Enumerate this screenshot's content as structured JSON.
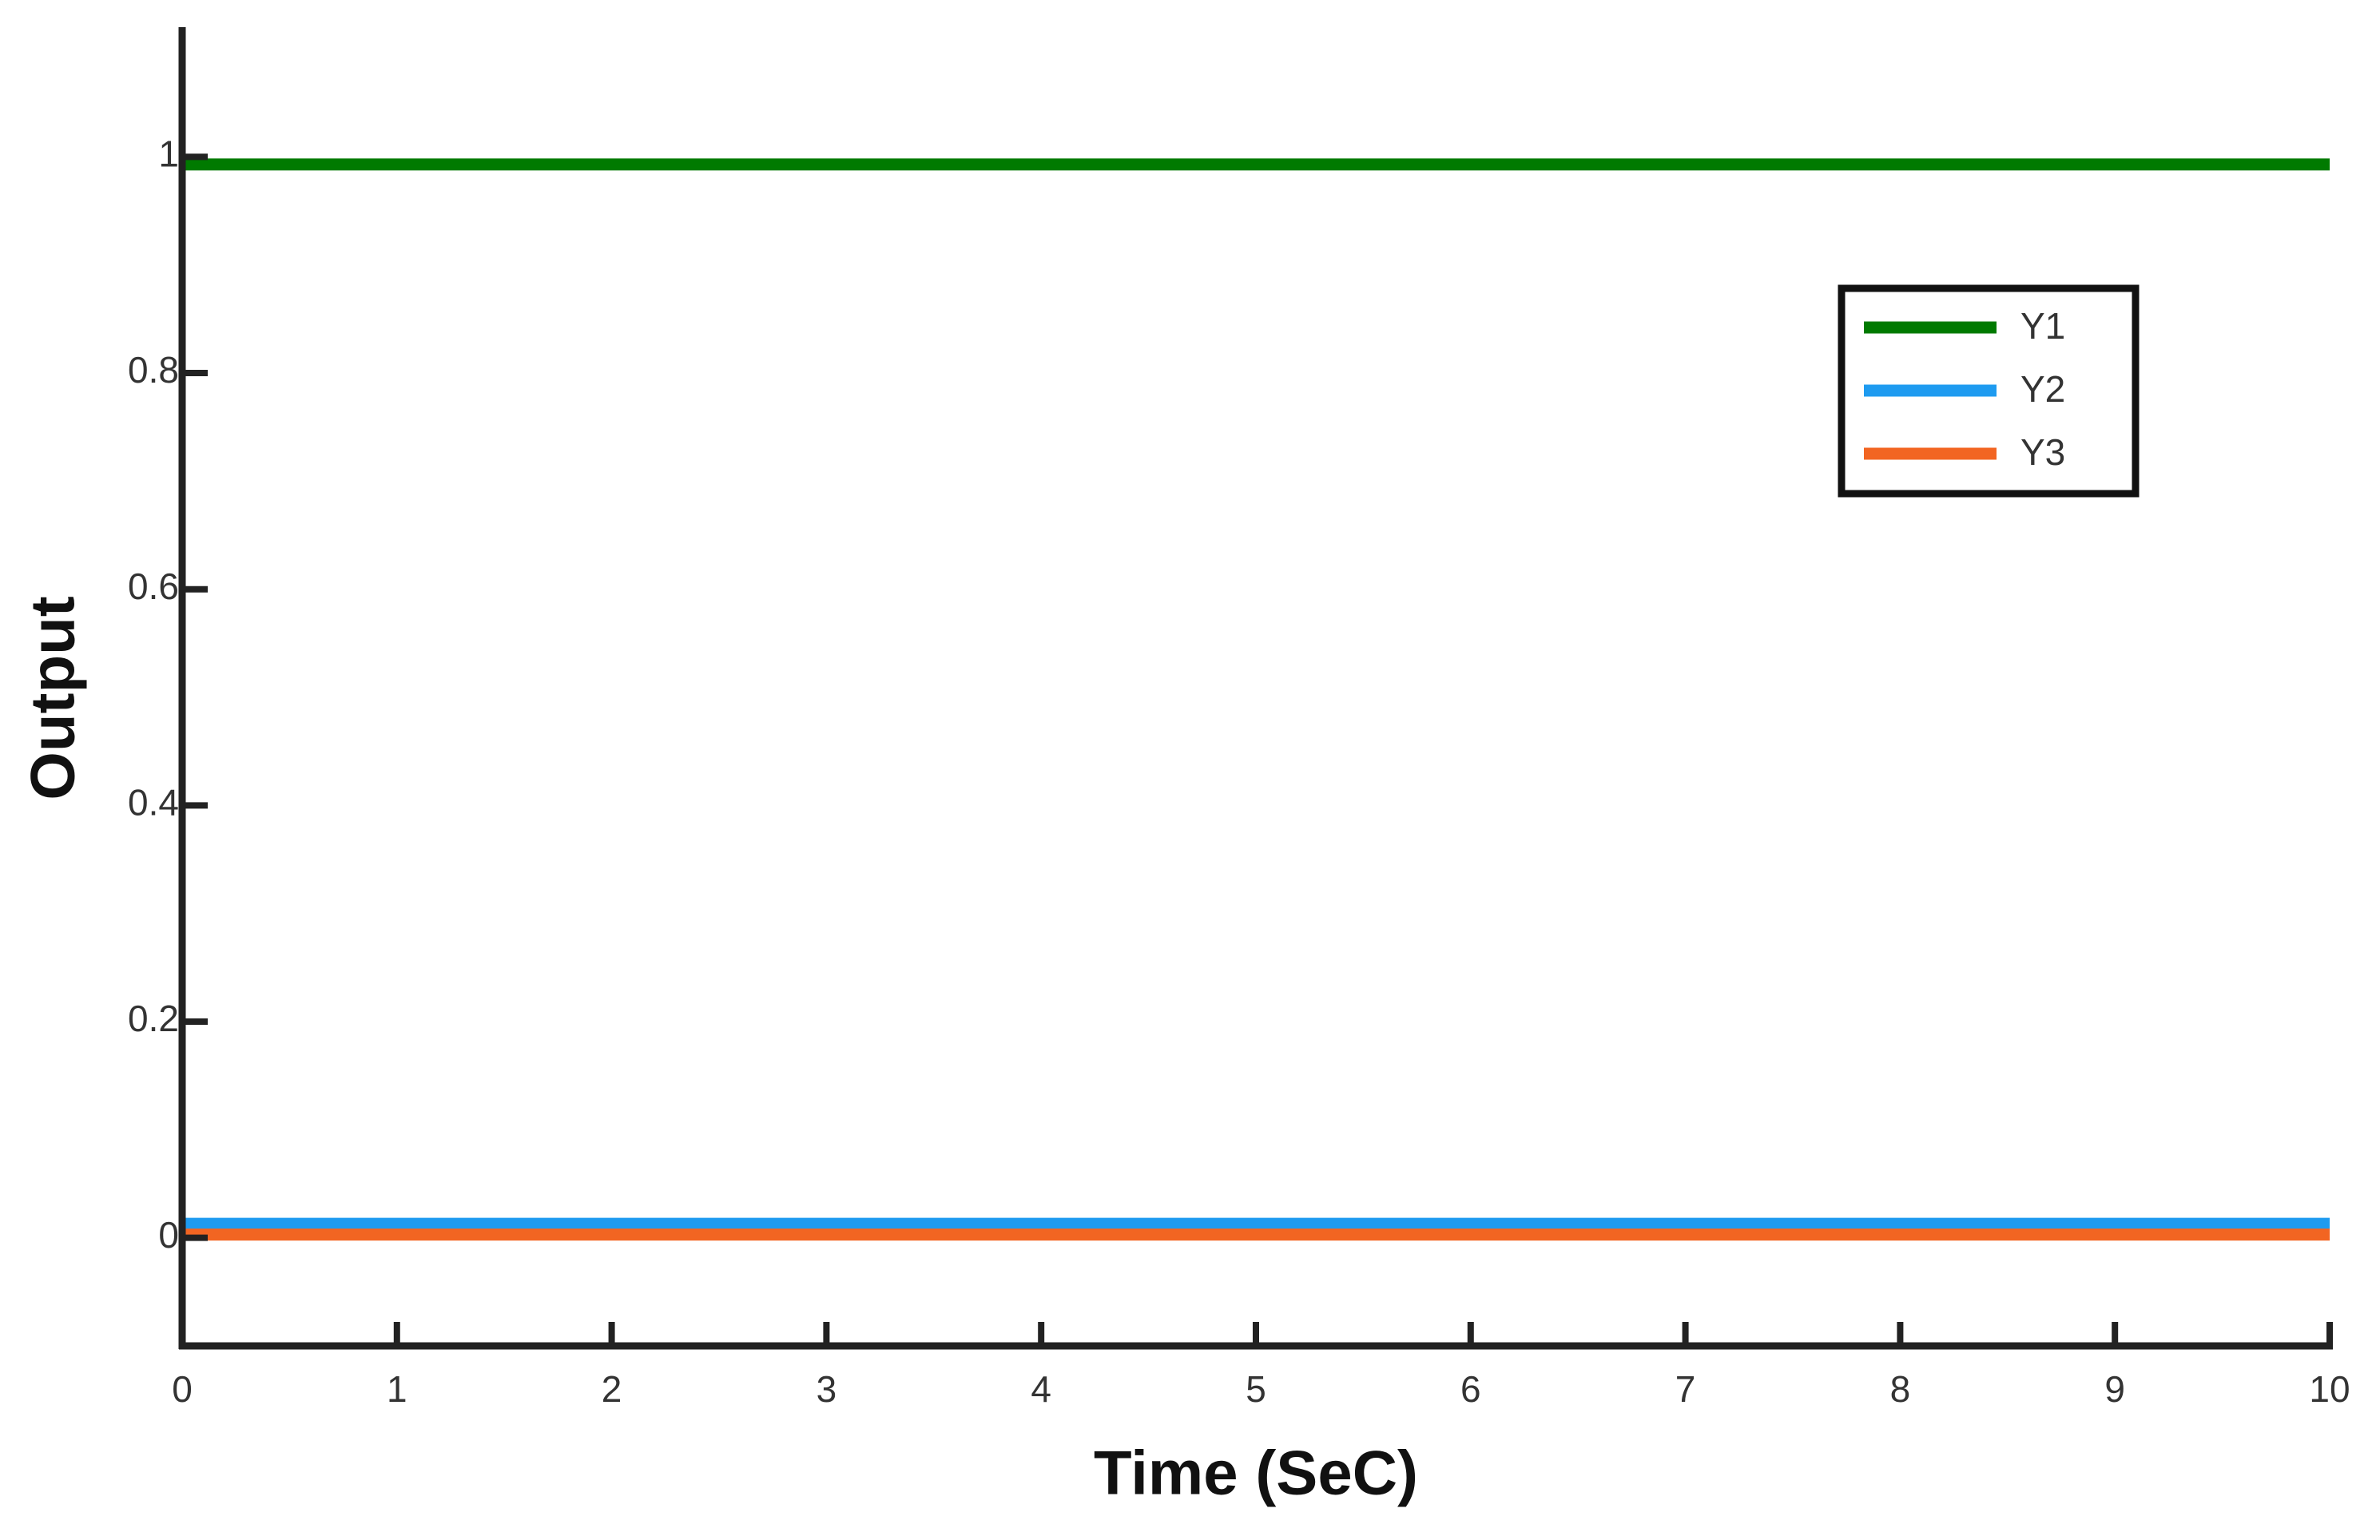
{
  "chart_data": {
    "type": "line",
    "x_label": "Time (SeC)",
    "y_label": "Output",
    "x": [
      0,
      10
    ],
    "series": [
      {
        "name": "Y1",
        "color": "#007a00",
        "values": [
          0.993,
          0.993
        ]
      },
      {
        "name": "Y2",
        "color": "#1e9bf0",
        "values": [
          0.013,
          0.013
        ]
      },
      {
        "name": "Y3",
        "color": "#f26522",
        "values": [
          0.003,
          0.003
        ]
      }
    ],
    "xlim": [
      0,
      10
    ],
    "xticks": [
      0,
      1,
      2,
      3,
      4,
      5,
      6,
      7,
      8,
      9,
      10
    ],
    "ylim": [
      -0.1,
      1.12
    ],
    "yticks": [
      0,
      0.2,
      0.4,
      0.6,
      0.8,
      1
    ],
    "grid": false,
    "legend": "upper right"
  }
}
